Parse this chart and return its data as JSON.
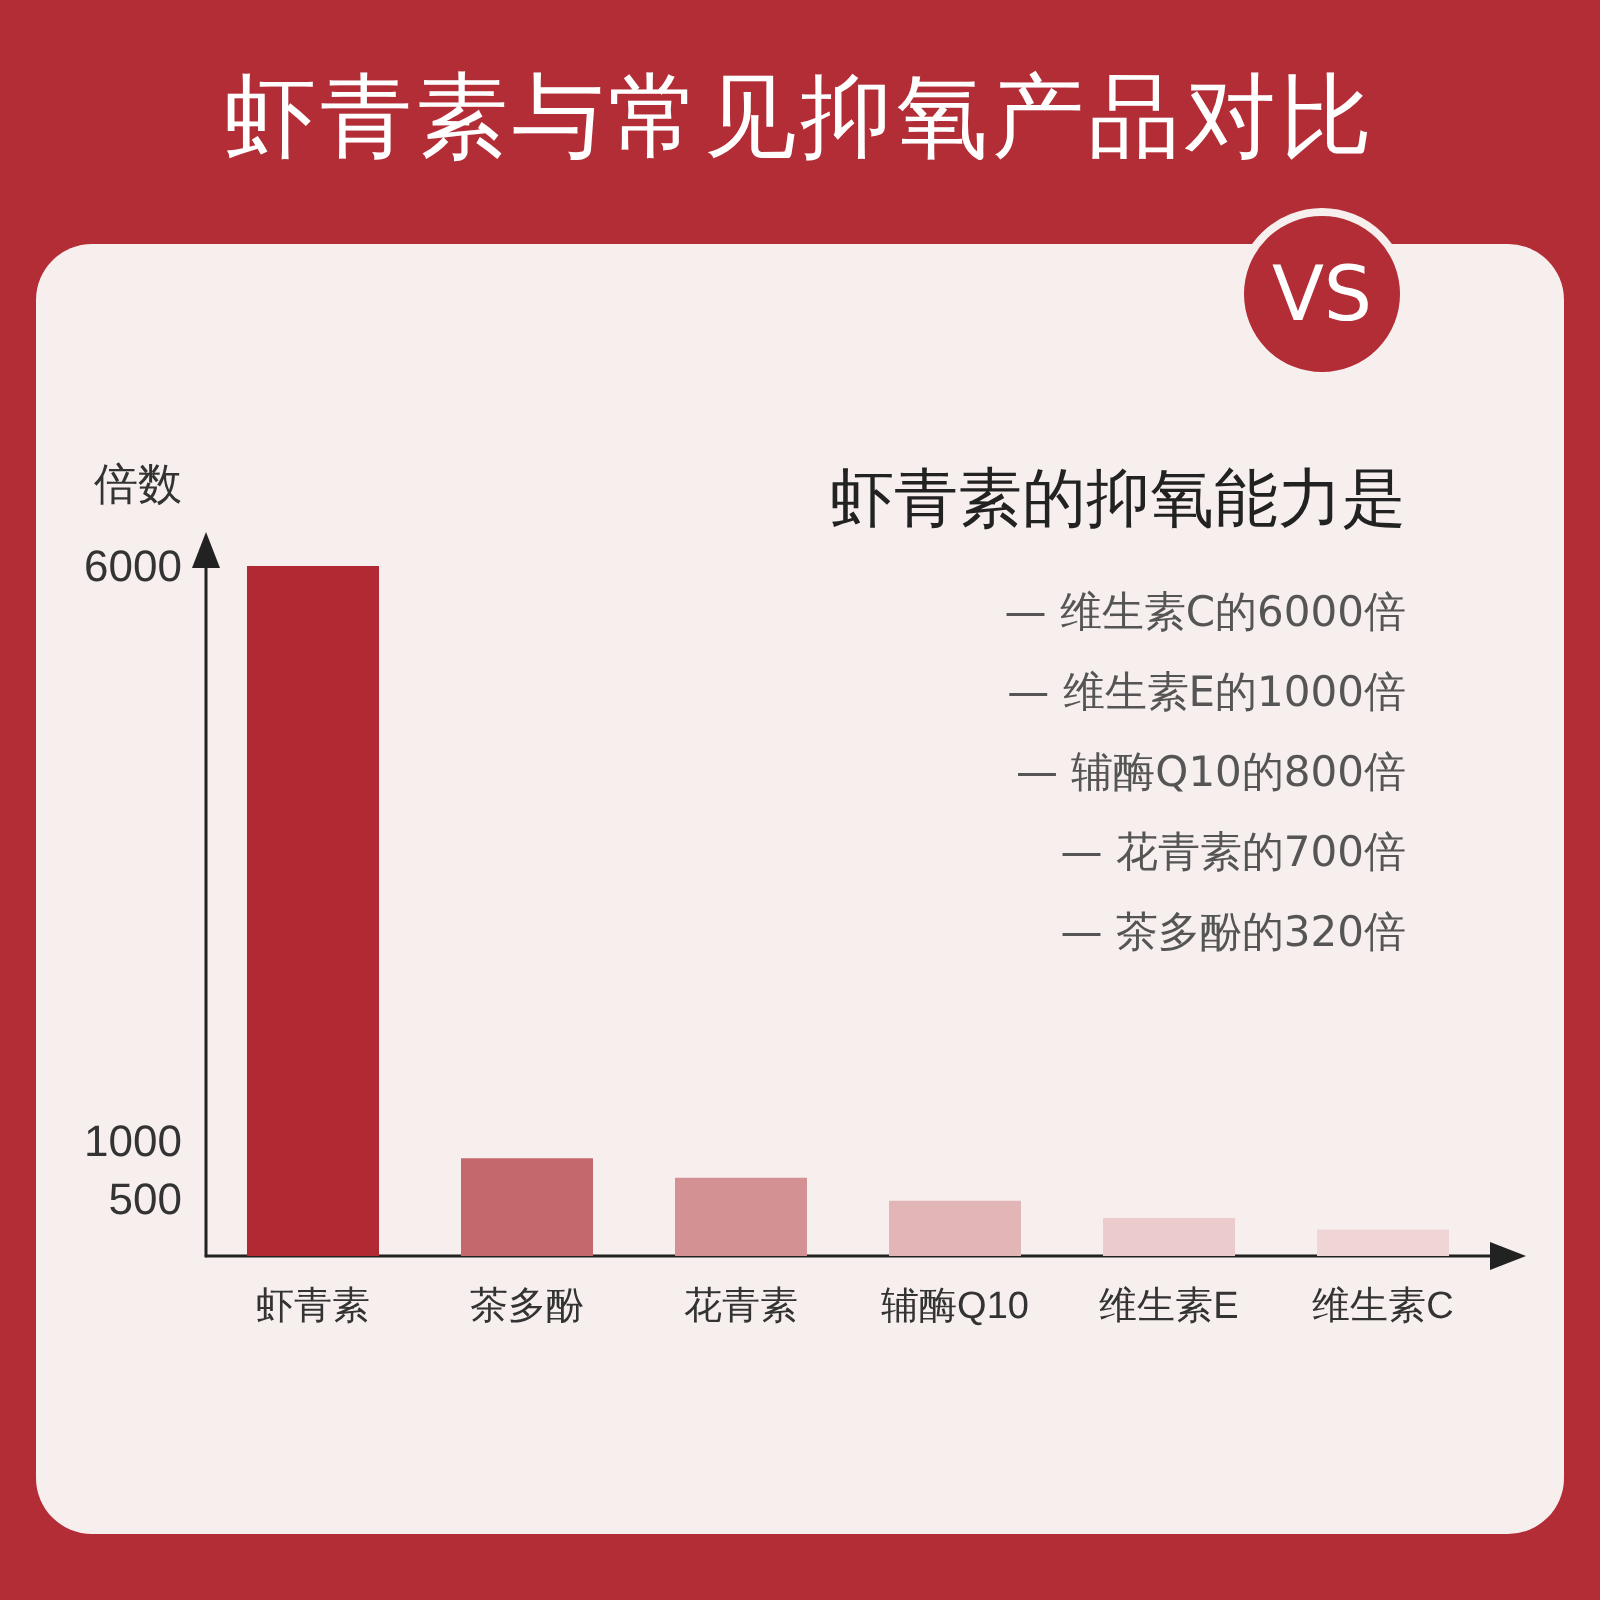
{
  "chart_data": {
    "type": "bar",
    "title": "虾青素与常见抑氧产品对比",
    "ylabel": "倍数",
    "categories": [
      "虾青素",
      "茶多酚",
      "花青素",
      "辅酶Q10",
      "维生素E",
      "维生素C"
    ],
    "values": [
      6000,
      850,
      680,
      480,
      330,
      230
    ],
    "colors": [
      "#b12a33",
      "#c4686c",
      "#d49193",
      "#e2b5b6",
      "#ebcbcc",
      "#f0d5d6"
    ],
    "ylim": [
      0,
      6000
    ],
    "yticks": [
      500,
      1000,
      6000
    ],
    "grid": false,
    "annotations": [
      "VS",
      "虾青素的抑氧能力是",
      "— 维生素C的6000倍",
      "— 维生素E的1000倍",
      "— 辅酶Q10的800倍",
      "— 花青素的700倍",
      "— 茶多酚的320倍"
    ]
  }
}
